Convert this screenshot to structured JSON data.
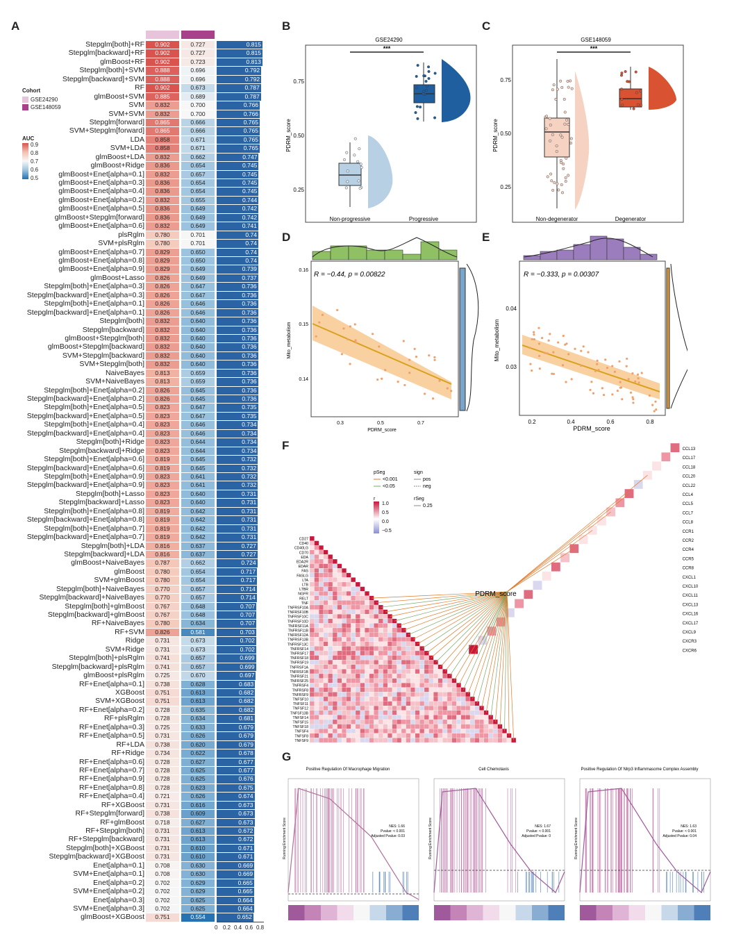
{
  "panel_labels": {
    "a": "A",
    "b": "B",
    "c": "C",
    "d": "D",
    "e": "E",
    "f": "F",
    "g": "G"
  },
  "panelA": {
    "legend": {
      "cohort_title": "Cohort",
      "cohorts": [
        {
          "name": "GSE24290",
          "color": "#e8c3dc"
        },
        {
          "name": "GSE148059",
          "color": "#a8418a"
        }
      ],
      "auc_title": "AUC",
      "auc_ticks": [
        "0.9",
        "0.8",
        "0.7",
        "0.6",
        "0.5"
      ]
    },
    "axis_ticks": [
      "0",
      "0.2",
      "0.4",
      "0.6",
      "0.8"
    ],
    "rows": [
      [
        "Stepglm[both]+RF",
        "0.902",
        "0.727",
        "0.815"
      ],
      [
        "Stepglm[backward]+RF",
        "0.902",
        "0.727",
        "0.815"
      ],
      [
        "glmBoost+RF",
        "0.902",
        "0.723",
        "0.813"
      ],
      [
        "Stepglm[both]+SVM",
        "0.888",
        "0.696",
        "0.792"
      ],
      [
        "Stepglm[backward]+SVM",
        "0.888",
        "0.696",
        "0.792"
      ],
      [
        "RF",
        "0.902",
        "0.673",
        "0.787"
      ],
      [
        "glmBoost+SVM",
        "0.885",
        "0.689",
        "0.787"
      ],
      [
        "SVM",
        "0.832",
        "0.700",
        "0.766"
      ],
      [
        "SVM+SVM",
        "0.832",
        "0.700",
        "0.766"
      ],
      [
        "Stepglm[forward]",
        "0.865",
        "0.666",
        "0.765"
      ],
      [
        "SVM+Stepglm[forward]",
        "0.865",
        "0.666",
        "0.765"
      ],
      [
        "LDA",
        "0.858",
        "0.671",
        "0.765"
      ],
      [
        "SVM+LDA",
        "0.858",
        "0.671",
        "0.765"
      ],
      [
        "glmBoost+LDA",
        "0.832",
        "0.662",
        "0.747"
      ],
      [
        "glmBoost+Ridge",
        "0.836",
        "0.654",
        "0.745"
      ],
      [
        "glmBoost+Enet[alpha=0.1]",
        "0.832",
        "0.657",
        "0.745"
      ],
      [
        "glmBoost+Enet[alpha=0.3]",
        "0.836",
        "0.654",
        "0.745"
      ],
      [
        "glmBoost+Enet[alpha=0.4]",
        "0.836",
        "0.654",
        "0.745"
      ],
      [
        "glmBoost+Enet[alpha=0.2]",
        "0.832",
        "0.655",
        "0.744"
      ],
      [
        "glmBoost+Enet[alpha=0.5]",
        "0.836",
        "0.649",
        "0.742"
      ],
      [
        "glmBoost+Stepglm[forward]",
        "0.836",
        "0.649",
        "0.742"
      ],
      [
        "glmBoost+Enet[alpha=0.6]",
        "0.832",
        "0.649",
        "0.741"
      ],
      [
        "plsRglm",
        "0.780",
        "0.701",
        "0.74"
      ],
      [
        "SVM+plsRglm",
        "0.780",
        "0.701",
        "0.74"
      ],
      [
        "glmBoost+Enet[alpha=0.7]",
        "0.829",
        "0.650",
        "0.74"
      ],
      [
        "glmBoost+Enet[alpha=0.8]",
        "0.829",
        "0.650",
        "0.74"
      ],
      [
        "glmBoost+Enet[alpha=0.9]",
        "0.829",
        "0.649",
        "0.739"
      ],
      [
        "glmBoost+Lasso",
        "0.826",
        "0.649",
        "0.737"
      ],
      [
        "Stepglm[both]+Enet[alpha=0.3]",
        "0.826",
        "0.647",
        "0.736"
      ],
      [
        "Stepglm[backward]+Enet[alpha=0.3]",
        "0.826",
        "0.647",
        "0.736"
      ],
      [
        "Stepglm[both]+Enet[alpha=0.1]",
        "0.826",
        "0.646",
        "0.736"
      ],
      [
        "Stepglm[backward]+Enet[alpha=0.1]",
        "0.826",
        "0.646",
        "0.736"
      ],
      [
        "Stepglm[both]",
        "0.832",
        "0.640",
        "0.736"
      ],
      [
        "Stepglm[backward]",
        "0.832",
        "0.640",
        "0.736"
      ],
      [
        "glmBoost+Stepglm[both]",
        "0.832",
        "0.640",
        "0.736"
      ],
      [
        "glmBoost+Stepglm[backward]",
        "0.832",
        "0.640",
        "0.736"
      ],
      [
        "SVM+Stepglm[backward]",
        "0.832",
        "0.640",
        "0.736"
      ],
      [
        "SVM+Stepglm[both]",
        "0.832",
        "0.640",
        "0.736"
      ],
      [
        "NaiveBayes",
        "0.813",
        "0.659",
        "0.736"
      ],
      [
        "SVM+NaiveBayes",
        "0.813",
        "0.659",
        "0.736"
      ],
      [
        "Stepglm[both]+Enet[alpha=0.2]",
        "0.826",
        "0.645",
        "0.736"
      ],
      [
        "Stepglm[backward]+Enet[alpha=0.2]",
        "0.826",
        "0.645",
        "0.736"
      ],
      [
        "Stepglm[both]+Enet[alpha=0.5]",
        "0.823",
        "0.647",
        "0.735"
      ],
      [
        "Stepglm[backward]+Enet[alpha=0.5]",
        "0.823",
        "0.647",
        "0.735"
      ],
      [
        "Stepglm[both]+Enet[alpha=0.4]",
        "0.823",
        "0.646",
        "0.734"
      ],
      [
        "Stepglm[backward]+Enet[alpha=0.4]",
        "0.823",
        "0.646",
        "0.734"
      ],
      [
        "Stepglm[both]+Ridge",
        "0.823",
        "0.644",
        "0.734"
      ],
      [
        "Stepglm[backward]+Ridge",
        "0.823",
        "0.644",
        "0.734"
      ],
      [
        "Stepglm[both]+Enet[alpha=0.6]",
        "0.819",
        "0.645",
        "0.732"
      ],
      [
        "Stepglm[backward]+Enet[alpha=0.6]",
        "0.819",
        "0.645",
        "0.732"
      ],
      [
        "Stepglm[both]+Enet[alpha=0.9]",
        "0.823",
        "0.641",
        "0.732"
      ],
      [
        "Stepglm[backward]+Enet[alpha=0.9]",
        "0.823",
        "0.641",
        "0.732"
      ],
      [
        "Stepglm[both]+Lasso",
        "0.823",
        "0.640",
        "0.731"
      ],
      [
        "Stepglm[backward]+Lasso",
        "0.823",
        "0.640",
        "0.731"
      ],
      [
        "Stepglm[both]+Enet[alpha=0.8]",
        "0.819",
        "0.642",
        "0.731"
      ],
      [
        "Stepglm[backward]+Enet[alpha=0.8]",
        "0.819",
        "0.642",
        "0.731"
      ],
      [
        "Stepglm[both]+Enet[alpha=0.7]",
        "0.819",
        "0.642",
        "0.731"
      ],
      [
        "Stepglm[backward]+Enet[alpha=0.7]",
        "0.819",
        "0.642",
        "0.731"
      ],
      [
        "Stepglm[both]+LDA",
        "0.816",
        "0.637",
        "0.727"
      ],
      [
        "Stepglm[backward]+LDA",
        "0.816",
        "0.637",
        "0.727"
      ],
      [
        "glmBoost+NaiveBayes",
        "0.787",
        "0.662",
        "0.724"
      ],
      [
        "glmBoost",
        "0.780",
        "0.654",
        "0.717"
      ],
      [
        "SVM+glmBoost",
        "0.780",
        "0.654",
        "0.717"
      ],
      [
        "Stepglm[both]+NaiveBayes",
        "0.770",
        "0.657",
        "0.714"
      ],
      [
        "Stepglm[backward]+NaiveBayes",
        "0.770",
        "0.657",
        "0.714"
      ],
      [
        "Stepglm[both]+glmBoost",
        "0.767",
        "0.648",
        "0.707"
      ],
      [
        "Stepglm[backward]+glmBoost",
        "0.767",
        "0.648",
        "0.707"
      ],
      [
        "RF+NaiveBayes",
        "0.780",
        "0.634",
        "0.707"
      ],
      [
        "RF+SVM",
        "0.826",
        "0.581",
        "0.703"
      ],
      [
        "Ridge",
        "0.731",
        "0.673",
        "0.702"
      ],
      [
        "SVM+Ridge",
        "0.731",
        "0.673",
        "0.702"
      ],
      [
        "Stepglm[both]+plsRglm",
        "0.741",
        "0.657",
        "0.699"
      ],
      [
        "Stepglm[backward]+plsRglm",
        "0.741",
        "0.657",
        "0.699"
      ],
      [
        "glmBoost+plsRglm",
        "0.725",
        "0.670",
        "0.697"
      ],
      [
        "RF+Enet[alpha=0.1]",
        "0.738",
        "0.628",
        "0.683"
      ],
      [
        "XGBoost",
        "0.751",
        "0.613",
        "0.682"
      ],
      [
        "SVM+XGBoost",
        "0.751",
        "0.613",
        "0.682"
      ],
      [
        "RF+Enet[alpha=0.2]",
        "0.728",
        "0.635",
        "0.682"
      ],
      [
        "RF+plsRglm",
        "0.728",
        "0.634",
        "0.681"
      ],
      [
        "RF+Enet[alpha=0.3]",
        "0.725",
        "0.633",
        "0.679"
      ],
      [
        "RF+Enet[alpha=0.5]",
        "0.731",
        "0.626",
        "0.679"
      ],
      [
        "RF+LDA",
        "0.738",
        "0.620",
        "0.679"
      ],
      [
        "RF+Ridge",
        "0.734",
        "0.622",
        "0.678"
      ],
      [
        "RF+Enet[alpha=0.6]",
        "0.728",
        "0.627",
        "0.677"
      ],
      [
        "RF+Enet[alpha=0.7]",
        "0.728",
        "0.625",
        "0.677"
      ],
      [
        "RF+Enet[alpha=0.9]",
        "0.728",
        "0.625",
        "0.676"
      ],
      [
        "RF+Enet[alpha=0.8]",
        "0.728",
        "0.623",
        "0.675"
      ],
      [
        "RF+Enet[alpha=0.4]",
        "0.721",
        "0.626",
        "0.674"
      ],
      [
        "RF+XGBoost",
        "0.731",
        "0.616",
        "0.673"
      ],
      [
        "RF+Stepglm[forward]",
        "0.738",
        "0.609",
        "0.673"
      ],
      [
        "RF+glmBoost",
        "0.718",
        "0.627",
        "0.673"
      ],
      [
        "RF+Stepglm[both]",
        "0.731",
        "0.613",
        "0.672"
      ],
      [
        "RF+Stepglm[backward]",
        "0.731",
        "0.613",
        "0.672"
      ],
      [
        "Stepglm[both]+XGBoost",
        "0.731",
        "0.610",
        "0.671"
      ],
      [
        "Stepglm[backward]+XGBoost",
        "0.731",
        "0.610",
        "0.671"
      ],
      [
        "Enet[alpha=0.1]",
        "0.708",
        "0.630",
        "0.669"
      ],
      [
        "SVM+Enet[alpha=0.1]",
        "0.708",
        "0.630",
        "0.669"
      ],
      [
        "Enet[alpha=0.2]",
        "0.702",
        "0.629",
        "0.665"
      ],
      [
        "SVM+Enet[alpha=0.2]",
        "0.702",
        "0.629",
        "0.665"
      ],
      [
        "Enet[alpha=0.3]",
        "0.702",
        "0.625",
        "0.664"
      ],
      [
        "SVM+Enet[alpha=0.3]",
        "0.702",
        "0.625",
        "0.664"
      ],
      [
        "glmBoost+XGBoost",
        "0.751",
        "0.554",
        "0.652"
      ]
    ]
  },
  "panelB": {
    "title": "GSE24290",
    "sig": "***",
    "ylabel": "PDRM_score",
    "yticks": [
      "0.25",
      "0.50",
      "0.75"
    ],
    "groups": [
      "Non-progressive",
      "Progressive"
    ],
    "colors": {
      "g1": "#b8d0e4",
      "g2": "#1f5fa0"
    }
  },
  "panelC": {
    "title": "GSE148059",
    "sig": "***",
    "ylabel": "PDRM_score",
    "yticks": [
      "0.25",
      "0.50",
      "0.75"
    ],
    "groups": [
      "Non-degenerator",
      "Degenerator"
    ],
    "colors": {
      "g1": "#f6d2c2",
      "g2": "#d95332"
    }
  },
  "panelD": {
    "stat": "R = −0.44, p = 0.00822",
    "xlabel": "PDRM_score",
    "ylabel": "Mito_metabolism",
    "xticks": [
      "0.3",
      "0.5",
      "0.7"
    ],
    "yticks": [
      "0.14",
      "0.15",
      "0.16"
    ],
    "colors": {
      "hist": "#8fc164",
      "band": "#f8c88f",
      "line": "#d8a21d",
      "side": "#7aa5ca"
    }
  },
  "panelE": {
    "stat": "R = −0.333, p = 0.00307",
    "xlabel": "PDRM_score",
    "ylabel": "Mito_metabolism",
    "xticks": [
      "0.2",
      "0.4",
      "0.6",
      "0.8"
    ],
    "yticks": [
      "0.03",
      "0.04"
    ],
    "colors": {
      "hist": "#9b7dbd",
      "band": "#f8c88f",
      "line": "#d8a21d",
      "side": "#d99a3c"
    }
  },
  "panelF": {
    "center": "PDRM_score",
    "legend": {
      "pSeg_title": "pSeg",
      "pSeg": [
        "<0.001",
        "<0.05"
      ],
      "sign_title": "sign",
      "sign": [
        "pos",
        "neg"
      ],
      "r_title": "r",
      "r_ticks": [
        "1.0",
        "0.5",
        "0.0",
        "−0.5"
      ],
      "rSeg_title": "rSeg",
      "rSeg": [
        "0.25"
      ]
    },
    "genes_right": [
      "CCL13",
      "CCL17",
      "CCL18",
      "CCL20",
      "CCL22",
      "CCL4",
      "CCL5",
      "CCL7",
      "CCL8",
      "CCR1",
      "CCR2",
      "CCR4",
      "CCR5",
      "CCR8",
      "CXCL1",
      "CXCL10",
      "CXCL11",
      "CXCL13",
      "CXCL16",
      "CXCL17",
      "CXCL9",
      "CXCR3",
      "CXCR6"
    ],
    "genes_left": [
      "CD27",
      "CD40",
      "CD40LG",
      "CD70",
      "EDA",
      "EDA2R",
      "EDAR",
      "FAS",
      "FASLG",
      "LTA",
      "LTB",
      "LTBR",
      "NGFR",
      "RELT",
      "TNF",
      "TNFRSF10A",
      "TNFRSF10B",
      "TNFRSF10C",
      "TNFRSF10D",
      "TNFRSF11A",
      "TNFRSF11B",
      "TNFRSF12A",
      "TNFRSF13B",
      "TNFRSF13C",
      "TNFRSF14",
      "TNFRSF17",
      "TNFRSF18",
      "TNFRSF19",
      "TNFRSF1A",
      "TNFRSF1B",
      "TNFRSF21",
      "TNFRSF25",
      "TNFRSF4",
      "TNFRSF8",
      "TNFRSF9",
      "TNFSF10",
      "TNFSF11",
      "TNFSF12",
      "TNFSF13B",
      "TNFSF14",
      "TNFSF15",
      "TNFSF18",
      "TNFSF4",
      "TNFSF8",
      "TNFSF9"
    ]
  },
  "panelG": {
    "ylabel": "Running Enrichment Score",
    "plots": [
      {
        "title": "Positive Regulation Of Macrophage Migration",
        "nes": "NES: 1.66",
        "pval": "Pvalue: < 0.001",
        "adj": "Adjusted Pvalue: 0.03"
      },
      {
        "title": "Cell Chemotaxis",
        "nes": "NES: 1.67",
        "pval": "Pvalue: < 0.001",
        "adj": "Adjusted Pvalue: 0"
      },
      {
        "title": "Positive Regulation Of Nlrp3 Inflammasome Complex Assembly",
        "nes": "NES: 1.63",
        "pval": "Pvalue: < 0.001",
        "adj": "Adjusted Pvalue: 0.04"
      }
    ]
  }
}
